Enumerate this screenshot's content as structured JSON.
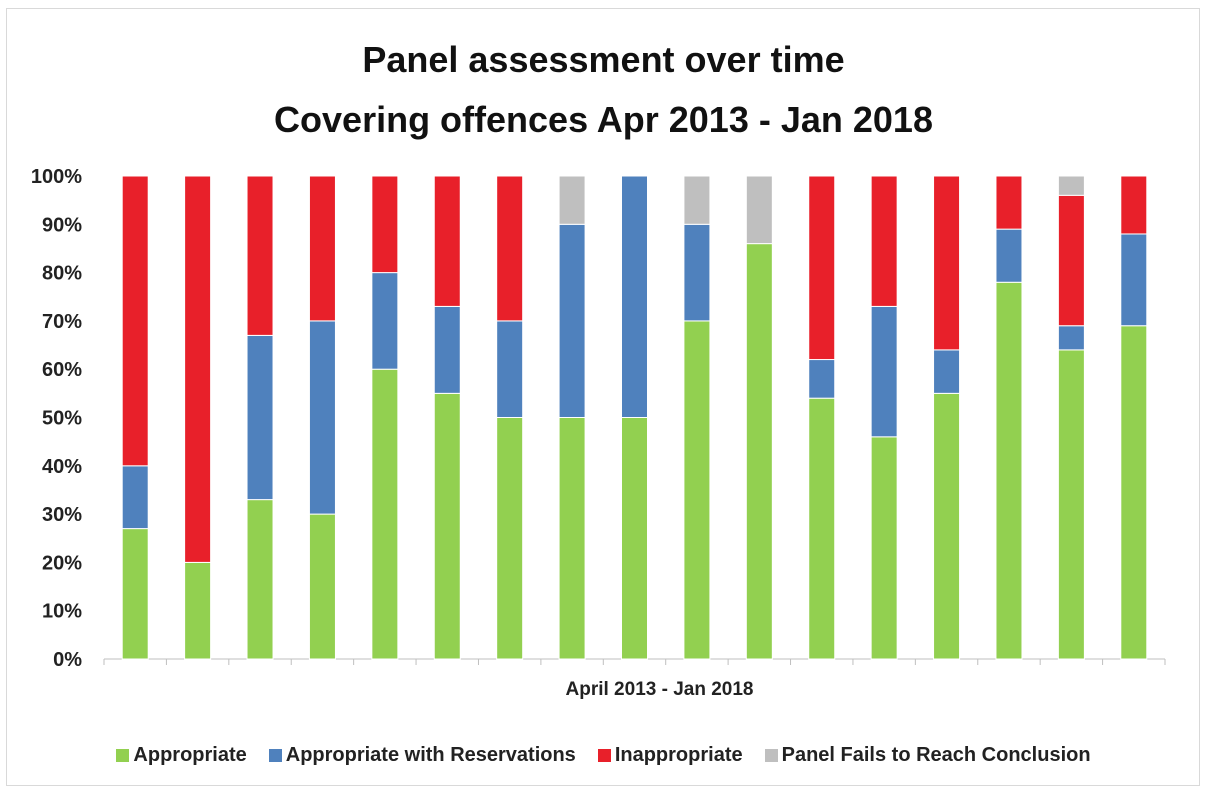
{
  "chart_data": {
    "type": "bar",
    "stacked": true,
    "percent_stacked": true,
    "title": "Panel assessment over time",
    "subtitle": "Covering offences Apr 2013 - Jan 2018",
    "xlabel": "April 2013 - Jan 2018",
    "ylabel": "",
    "ylim": [
      0,
      100
    ],
    "y_ticks": [
      "0%",
      "10%",
      "20%",
      "30%",
      "40%",
      "50%",
      "60%",
      "70%",
      "80%",
      "90%",
      "100%"
    ],
    "grid": false,
    "legend_position": "bottom",
    "categories": [
      "",
      "",
      "",
      "",
      "",
      "",
      "",
      "",
      "",
      "",
      "",
      "",
      "",
      "",
      "",
      "",
      ""
    ],
    "series": [
      {
        "name": "Appropriate",
        "color": "#92d050",
        "values": [
          27,
          20,
          33,
          30,
          60,
          55,
          50,
          50,
          50,
          70,
          86,
          54,
          46,
          55,
          78,
          64,
          69
        ]
      },
      {
        "name": "Appropriate with Reservations",
        "color": "#4f81bd",
        "values": [
          13,
          0,
          34,
          40,
          20,
          18,
          20,
          40,
          50,
          20,
          0,
          8,
          27,
          9,
          11,
          5,
          19
        ]
      },
      {
        "name": "Inappropriate",
        "color": "#e8202a",
        "values": [
          60,
          80,
          33,
          30,
          20,
          27,
          30,
          0,
          0,
          0,
          0,
          38,
          27,
          36,
          11,
          27,
          12
        ]
      },
      {
        "name": "Panel Fails to Reach Conclusion",
        "color": "#bfbfbf",
        "values": [
          0,
          0,
          0,
          0,
          0,
          0,
          0,
          10,
          0,
          10,
          14,
          0,
          0,
          0,
          0,
          4,
          0
        ]
      }
    ]
  }
}
